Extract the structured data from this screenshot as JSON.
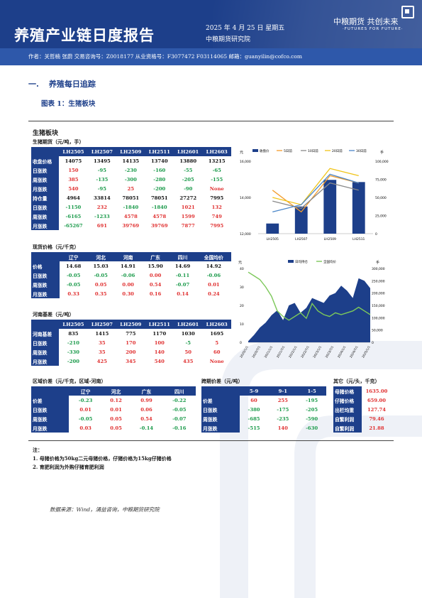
{
  "header": {
    "title": "养殖产业链日度报告",
    "date": "2025 年 4 月 25 日 星期五",
    "institute": "中粮期货研究院",
    "brand": "中粮期货  共创未来",
    "brand_en": "·FUTURES FOR FUTURE·",
    "authors": "作者：关哲楠   张蔚   交易咨询号：Z0018177 从业资格号：F3077472 F03114065   邮箱：guanyilin@cofco.com"
  },
  "section": {
    "number": "一.",
    "title": "养殖每日追踪"
  },
  "figure": {
    "title": "图表 1：生猪板块"
  },
  "block_title": "生猪板块",
  "futures": {
    "label": "生猪期货（元/吨，手）",
    "columns": [
      "LH2505",
      "LH2507",
      "LH2509",
      "LH2511",
      "LH2601",
      "LH2603"
    ],
    "rows": [
      {
        "label": "收盘价格",
        "values": [
          "14075",
          "13495",
          "14135",
          "13740",
          "13880",
          "13215"
        ]
      },
      {
        "label": "日涨跌",
        "values": [
          "150",
          "-95",
          "-230",
          "-160",
          "-55",
          "-65"
        ]
      },
      {
        "label": "周涨跌",
        "values": [
          "385",
          "-135",
          "-300",
          "-280",
          "-205",
          "-155"
        ]
      },
      {
        "label": "月涨跌",
        "values": [
          "540",
          "-95",
          "25",
          "-200",
          "-90",
          "None"
        ]
      },
      {
        "label": "持仓量",
        "values": [
          "4964",
          "33814",
          "78051",
          "78051",
          "27272",
          "7995"
        ]
      },
      {
        "label": "日涨跌",
        "values": [
          "-1150",
          "232",
          "-1840",
          "-1840",
          "1021",
          "132"
        ]
      },
      {
        "label": "周涨跌",
        "values": [
          "-6165",
          "-1233",
          "4578",
          "4578",
          "1599",
          "749"
        ]
      },
      {
        "label": "月涨跌",
        "values": [
          "-65267",
          "691",
          "39769",
          "39769",
          "7877",
          "7995"
        ]
      }
    ]
  },
  "spot": {
    "label": "现货价格（元/千克）",
    "columns": [
      "辽宁",
      "河北",
      "河南",
      "广东",
      "四川",
      "全国均价"
    ],
    "rows": [
      {
        "label": "价格",
        "values": [
          "14.68",
          "15.03",
          "14.91",
          "15.90",
          "14.69",
          "14.92"
        ]
      },
      {
        "label": "日涨跌",
        "values": [
          "-0.05",
          "-0.05",
          "-0.06",
          "0.00",
          "-0.11",
          "-0.06"
        ]
      },
      {
        "label": "周涨跌",
        "values": [
          "-0.05",
          "0.05",
          "0.00",
          "0.54",
          "-0.07",
          "0.01"
        ]
      },
      {
        "label": "月涨跌",
        "values": [
          "0.33",
          "0.35",
          "0.30",
          "0.16",
          "0.14",
          "0.24"
        ]
      }
    ]
  },
  "basis": {
    "label": "河南基差（元/吨）",
    "columns": [
      "LH2505",
      "LH2507",
      "LH2509",
      "LH2511",
      "LH2601",
      "LH2603"
    ],
    "rows": [
      {
        "label": "河南基差",
        "values": [
          "835",
          "1415",
          "775",
          "1170",
          "1030",
          "1695"
        ]
      },
      {
        "label": "日涨跌",
        "values": [
          "-210",
          "35",
          "170",
          "100",
          "-5",
          "5"
        ]
      },
      {
        "label": "周涨跌",
        "values": [
          "-330",
          "35",
          "200",
          "140",
          "50",
          "60"
        ]
      },
      {
        "label": "月涨跌",
        "values": [
          "-200",
          "425",
          "345",
          "540",
          "435",
          "None"
        ]
      }
    ]
  },
  "region": {
    "label": "区域价差（元/千克，区域-河南）",
    "columns": [
      "辽宁",
      "河北",
      "广东",
      "四川"
    ],
    "rows": [
      {
        "label": "价差",
        "values": [
          "-0.23",
          "0.12",
          "0.99",
          "-0.22"
        ]
      },
      {
        "label": "日涨跌",
        "values": [
          "0.01",
          "0.01",
          "0.06",
          "-0.05"
        ]
      },
      {
        "label": "周涨跌",
        "values": [
          "-0.05",
          "0.05",
          "0.54",
          "-0.07"
        ]
      },
      {
        "label": "月涨跌",
        "values": [
          "0.03",
          "0.05",
          "-0.14",
          "-0.16"
        ]
      }
    ]
  },
  "spread": {
    "label": "跨期价差（元/吨）",
    "columns": [
      "5-9",
      "9-1",
      "1-5"
    ],
    "rows": [
      {
        "label": "价差",
        "values": [
          "60",
          "255",
          "-195"
        ]
      },
      {
        "label": "日涨跌",
        "values": [
          "-380",
          "-175",
          "-205"
        ]
      },
      {
        "label": "周涨跌",
        "values": [
          "-685",
          "-235",
          "-590"
        ]
      },
      {
        "label": "月涨跌",
        "values": [
          "-515",
          "140",
          "-630"
        ]
      }
    ]
  },
  "other": {
    "label": "其它（元/头，千克）",
    "rows": [
      {
        "label": "母猪价格",
        "value": "1635.00"
      },
      {
        "label": "仔猪价格",
        "value": "659.00"
      },
      {
        "label": "出栏均重",
        "value": "127.74"
      },
      {
        "label": "自繁利润",
        "value": "79.46"
      },
      {
        "label": "自繁利润",
        "value": "21.88"
      }
    ]
  },
  "notes": {
    "title": "注：",
    "items": [
      "1. 母猪价格为50kg二元母猪价格，仔猪价格为15kg仔猪价格",
      "2. 育肥利润为外购仔猪育肥利润"
    ]
  },
  "source": "数据来源：Wind，涌益咨询，中粮期货研究院",
  "chart_data": [
    {
      "type": "bar",
      "categories": [
        "LH2505",
        "LH2507",
        "LH2509",
        "LH2511"
      ],
      "series": [
        {
          "name": "收盘价",
          "kind": "bar",
          "axis": "left",
          "values": [
            12560,
            13500,
            14970,
            14850
          ]
        },
        {
          "name": "5日前",
          "kind": "line",
          "axis": "right",
          "values": [
            60000,
            30000,
            80000,
            70000
          ]
        },
        {
          "name": "10日前",
          "kind": "line",
          "axis": "right",
          "values": [
            45000,
            35000,
            70000,
            60000
          ]
        },
        {
          "name": "20日前",
          "kind": "line",
          "axis": "right",
          "values": [
            50000,
            40000,
            90000,
            80000
          ]
        },
        {
          "name": "30日前",
          "kind": "line",
          "axis": "right",
          "values": [
            30000,
            40000,
            82000,
            70000
          ]
        }
      ],
      "ylabel": "元",
      "y2label": "手",
      "ylim": [
        12000,
        16000
      ],
      "y_ticks": [
        "12,000",
        "14,000",
        "16,000"
      ],
      "y2lim": [
        0,
        100000
      ],
      "y2_ticks": [
        "0",
        "25,000",
        "50,000",
        "75,000",
        "100,000"
      ]
    },
    {
      "type": "area",
      "x_ticks": [
        "2020/1/1",
        "2020/7/1",
        "2021/1/1",
        "2021/7/1",
        "2022/1/1",
        "2022/7/1",
        "2023/1/1",
        "2023/7/1",
        "2024/1/1",
        "2024/7/1",
        "2025/1/1"
      ],
      "series": [
        {
          "name": "日均持仓",
          "kind": "area",
          "axis": "right",
          "values": [
            5000,
            30000,
            60000,
            80000,
            110000,
            130000,
            90000,
            150000,
            160000,
            120000,
            140000,
            180000,
            170000,
            160000,
            190000,
            200000,
            230000,
            210000,
            180000,
            260000,
            250000,
            220000
          ]
        },
        {
          "name": "全国均价",
          "kind": "line",
          "axis": "left",
          "values": [
            38,
            36,
            34,
            30,
            25,
            17,
            14,
            12,
            14,
            16,
            13,
            21,
            17,
            15,
            14,
            16,
            15,
            16,
            17,
            19,
            17,
            15
          ]
        }
      ],
      "ylabel": "元",
      "y2label": "手",
      "ylim": [
        0,
        40
      ],
      "y_ticks": [
        "0",
        "10",
        "20",
        "30",
        "40"
      ],
      "y2lim": [
        0,
        300000
      ],
      "y2_ticks": [
        "0",
        "50,000",
        "100,000",
        "150,000",
        "200,000",
        "250,000",
        "300,000"
      ]
    }
  ]
}
